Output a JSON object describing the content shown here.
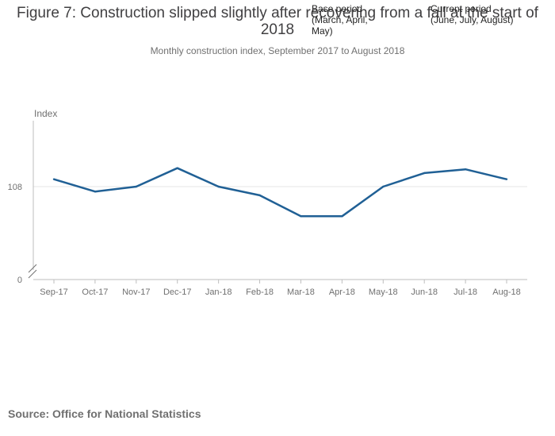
{
  "title": "Figure 7: Construction slipped slightly after recovering from a fall at the start of 2018",
  "subtitle": "Monthly construction index, September 2017 to August 2018",
  "annotations": {
    "base_period": "Base period (March, April, May)",
    "current_period": "Current period (June, July, August)"
  },
  "source": "Source: Office for National Statistics",
  "chart_data": {
    "type": "line",
    "title": "Figure 7: Construction slipped slightly after recovering from a fall at the start of 2018",
    "subtitle": "Monthly construction index, September 2017 to August 2018",
    "xlabel": "",
    "ylabel": "Index",
    "categories": [
      "Sep-17",
      "Oct-17",
      "Nov-17",
      "Dec-17",
      "Jan-18",
      "Feb-18",
      "Mar-18",
      "Apr-18",
      "May-18",
      "Jun-18",
      "Jul-18",
      "Aug-18"
    ],
    "series": [
      {
        "values": [
          108.6,
          107.6,
          108.0,
          109.5,
          108.0,
          107.3,
          105.6,
          105.6,
          108.0,
          109.1,
          109.4,
          108.6
        ]
      }
    ],
    "y_ticks": [
      0,
      108
    ],
    "ylim": [
      103.5,
      112.5
    ],
    "axis_break": true,
    "grid": true,
    "line_color": "#206095"
  }
}
